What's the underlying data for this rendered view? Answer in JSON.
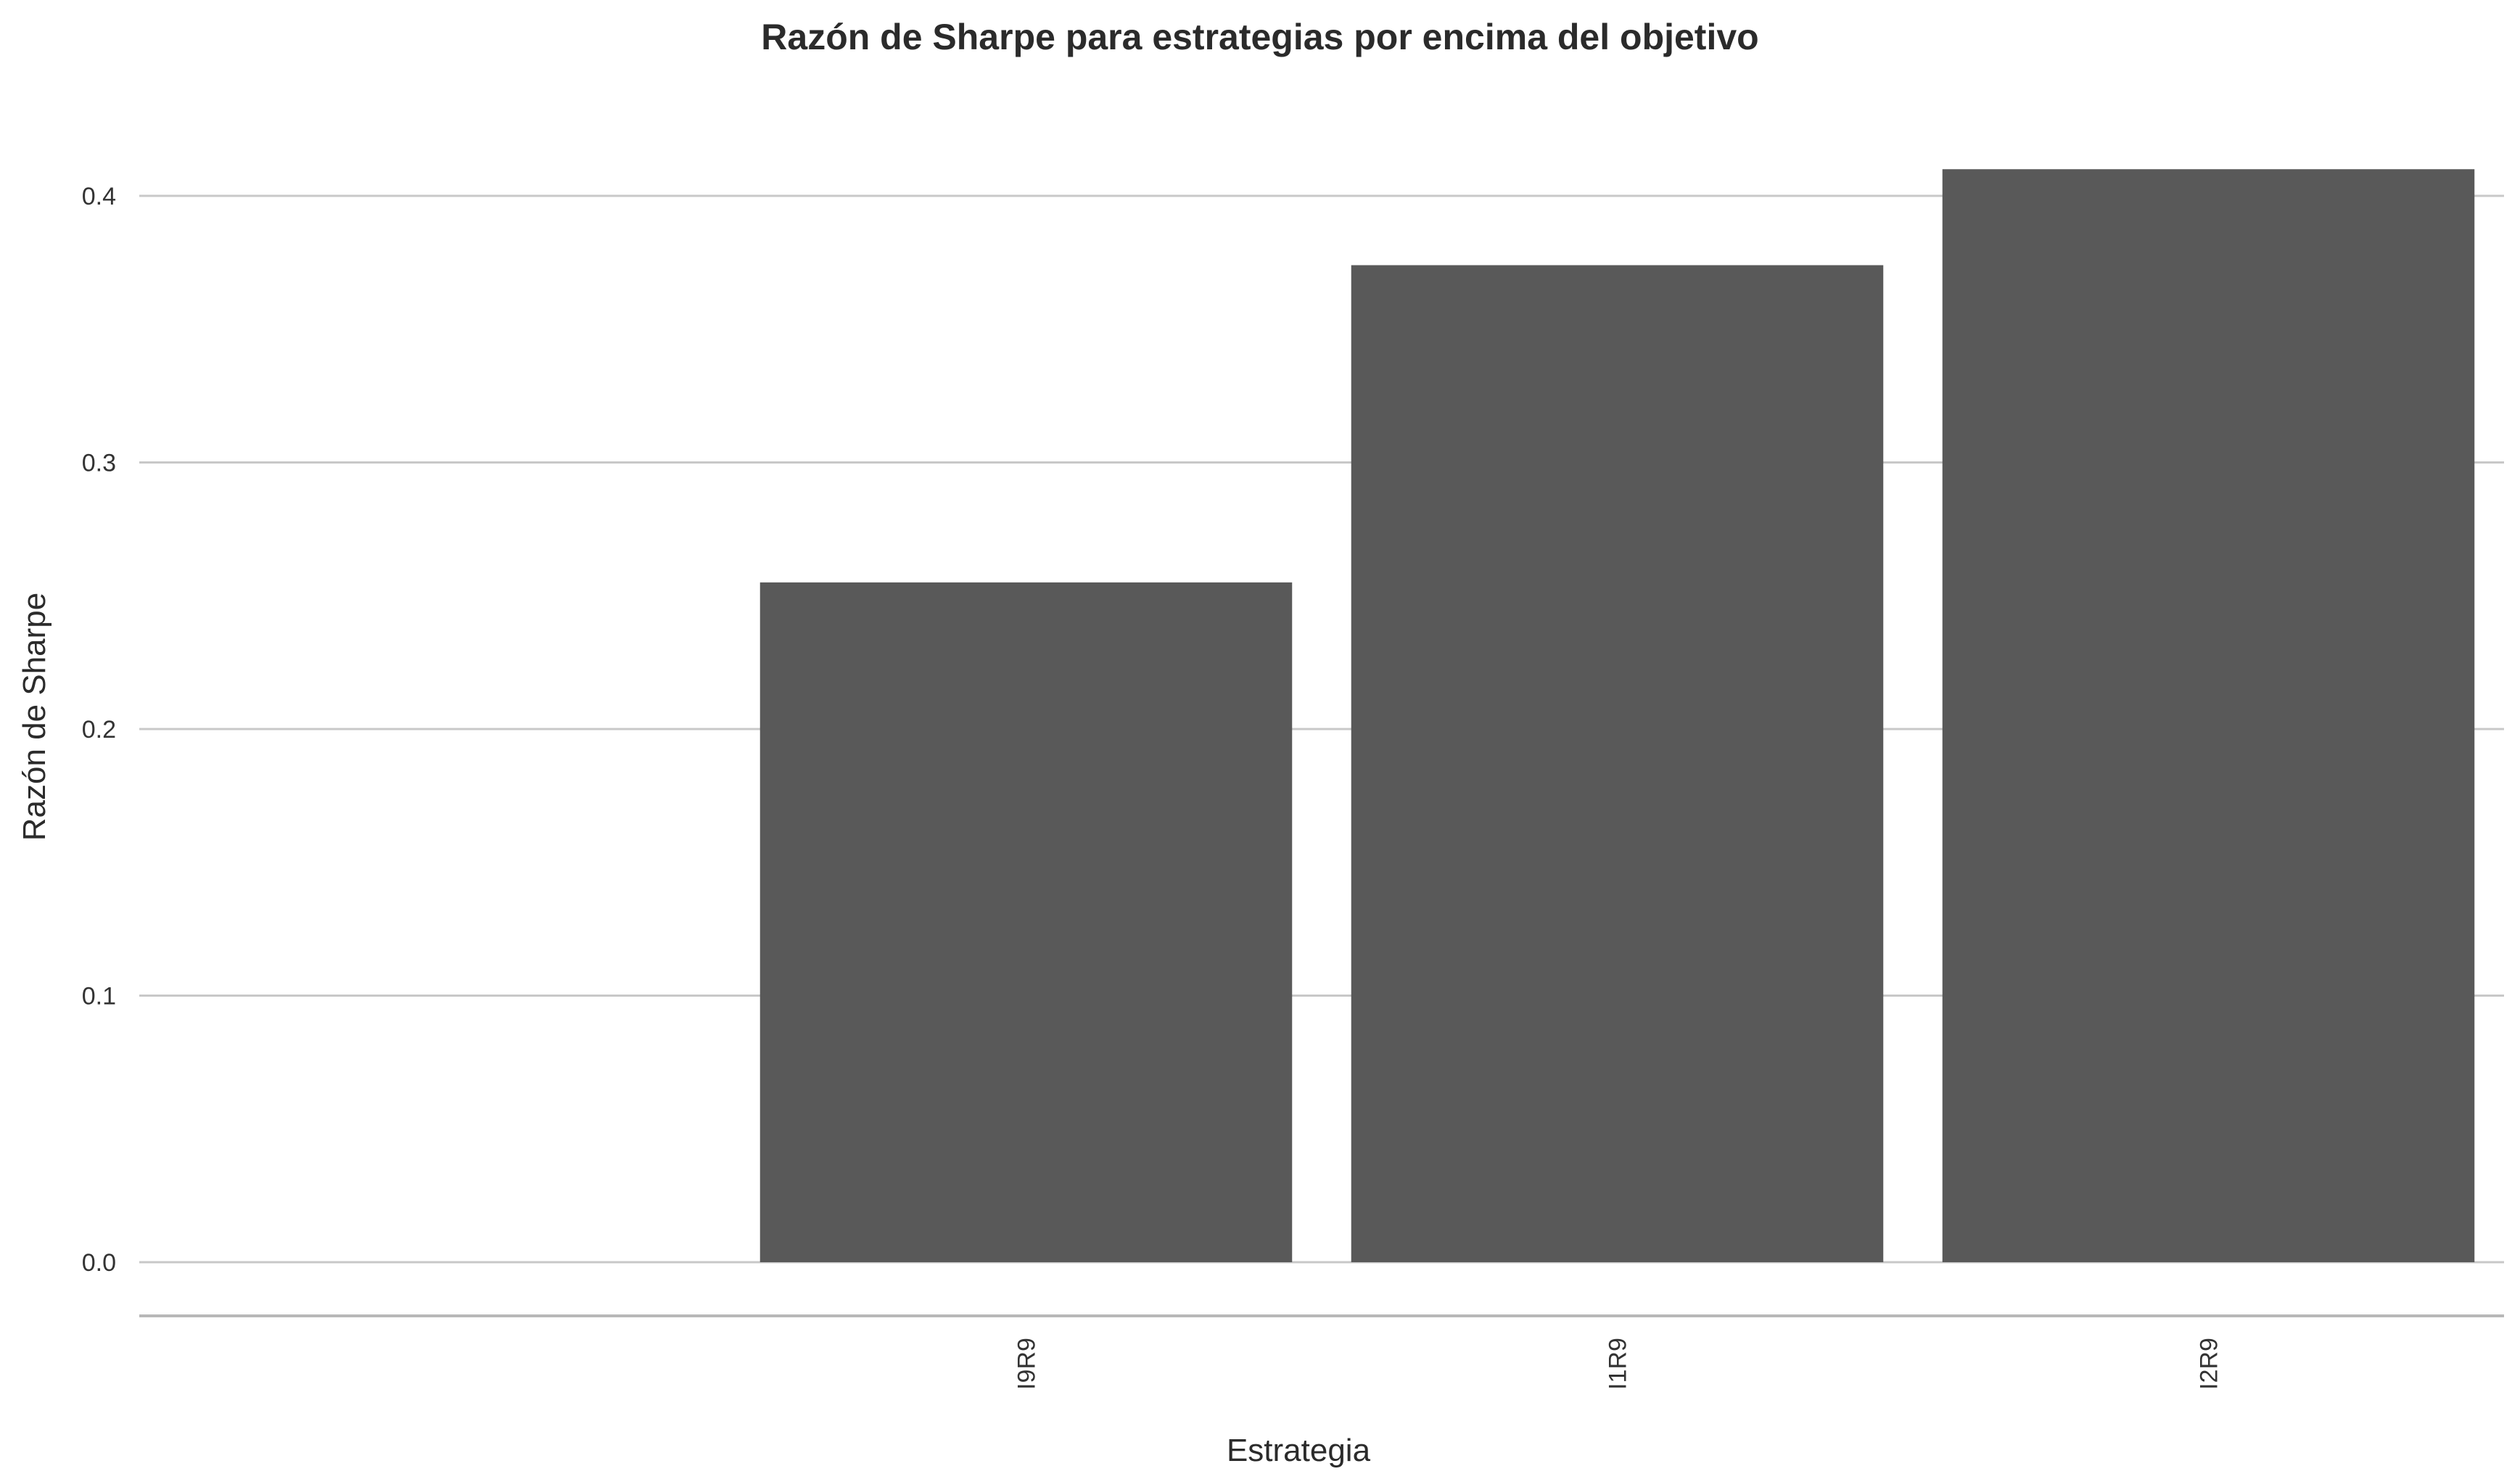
{
  "chart_data": {
    "type": "bar",
    "title": "Razón de Sharpe para estrategias por encima del objetivo",
    "xlabel": "Estrategia",
    "ylabel": "Razón de Sharpe",
    "categories": [
      "",
      "I9R9",
      "I1R9",
      "I2R9"
    ],
    "values": [
      null,
      0.255,
      0.374,
      0.41
    ],
    "yticks": [
      "0.0",
      "0.1",
      "0.2",
      "0.3",
      "0.4"
    ],
    "ytick_values": [
      0,
      0.1,
      0.2,
      0.3,
      0.4
    ],
    "ylim": [
      -0.02,
      0.42
    ],
    "grid": "horizontal",
    "legend": "none",
    "x_tick_rotation": "vertical",
    "bar_color": "#595959"
  }
}
